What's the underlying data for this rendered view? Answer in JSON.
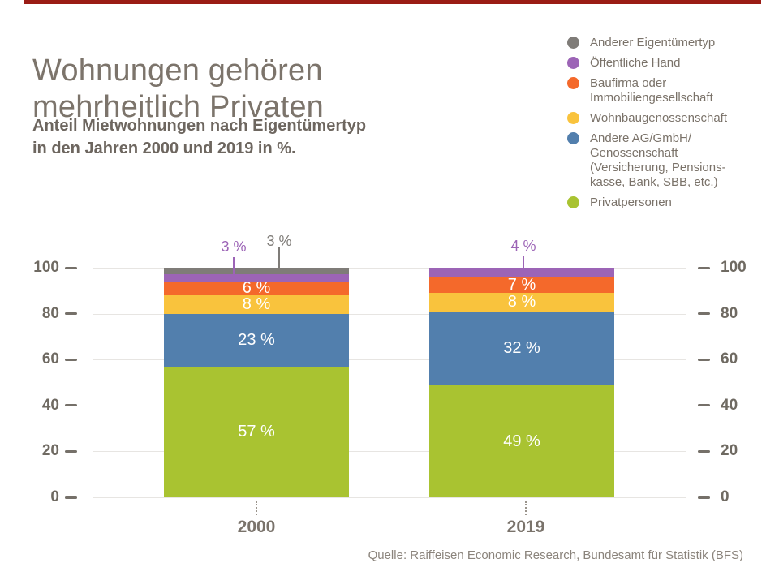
{
  "page": {
    "title": "Wohnungen gehören\nmehrheitlich Privaten",
    "subtitle": "Anteil Mietwohnungen nach Eigentümertyp\nin den Jahren 2000 und 2019 in %.",
    "source": "Quelle: Raiffeisen Economic Research, Bundesamt für Statistik (BFS)",
    "accent_bar_color": "#9a1c15"
  },
  "legend": {
    "position": "top-right",
    "items": [
      {
        "label": "Anderer Eigentümertyp",
        "color": "#7f7c78"
      },
      {
        "label": "Öffentliche Hand",
        "color": "#9c64b6"
      },
      {
        "label": "Baufirma oder\nImmobiliengesellschaft",
        "color": "#f4692b"
      },
      {
        "label": "Wohnbaugenossenschaft",
        "color": "#f9c33d"
      },
      {
        "label": "Andere AG/GmbH/\nGenossenschaft\n(Versicherung, Pensions-\nkasse, Bank, SBB, etc.)",
        "color": "#527fad"
      },
      {
        "label": "Privatpersonen",
        "color": "#a9c331"
      }
    ]
  },
  "chart_data": {
    "type": "bar",
    "subtype": "stacked",
    "unit": "%",
    "title": "Wohnungen gehören mehrheitlich Privaten",
    "xlabel": "",
    "ylabel": "",
    "categories": [
      "2000",
      "2019"
    ],
    "series": [
      {
        "name": "Privatpersonen",
        "color": "#a9c331",
        "values": [
          57,
          49
        ]
      },
      {
        "name": "Andere AG/GmbH/Genossenschaft (Versicherung, Pensionskasse, Bank, SBB, etc.)",
        "color": "#527fad",
        "values": [
          23,
          32
        ]
      },
      {
        "name": "Wohnbaugenossenschaft",
        "color": "#f9c33d",
        "values": [
          8,
          8
        ]
      },
      {
        "name": "Baufirma oder Immobiliengesellschaft",
        "color": "#f4692b",
        "values": [
          6,
          7
        ]
      },
      {
        "name": "Öffentliche Hand",
        "color": "#9c64b6",
        "values": [
          3,
          4
        ]
      },
      {
        "name": "Anderer Eigentümertyp",
        "color": "#7f7c78",
        "values": [
          3,
          0
        ]
      }
    ],
    "ylim": [
      0,
      100
    ],
    "yticks": [
      0,
      20,
      40,
      60,
      80,
      100
    ],
    "grid": true,
    "y_axis_sides": "both",
    "annotations": [
      {
        "bar": "2000",
        "series": "Öffentliche Hand",
        "text": "3 %"
      },
      {
        "bar": "2000",
        "series": "Anderer Eigentümertyp",
        "text": "3 %"
      },
      {
        "bar": "2019",
        "series": "Öffentliche Hand",
        "text": "4 %"
      }
    ],
    "inside_label_format": "{value} %"
  }
}
